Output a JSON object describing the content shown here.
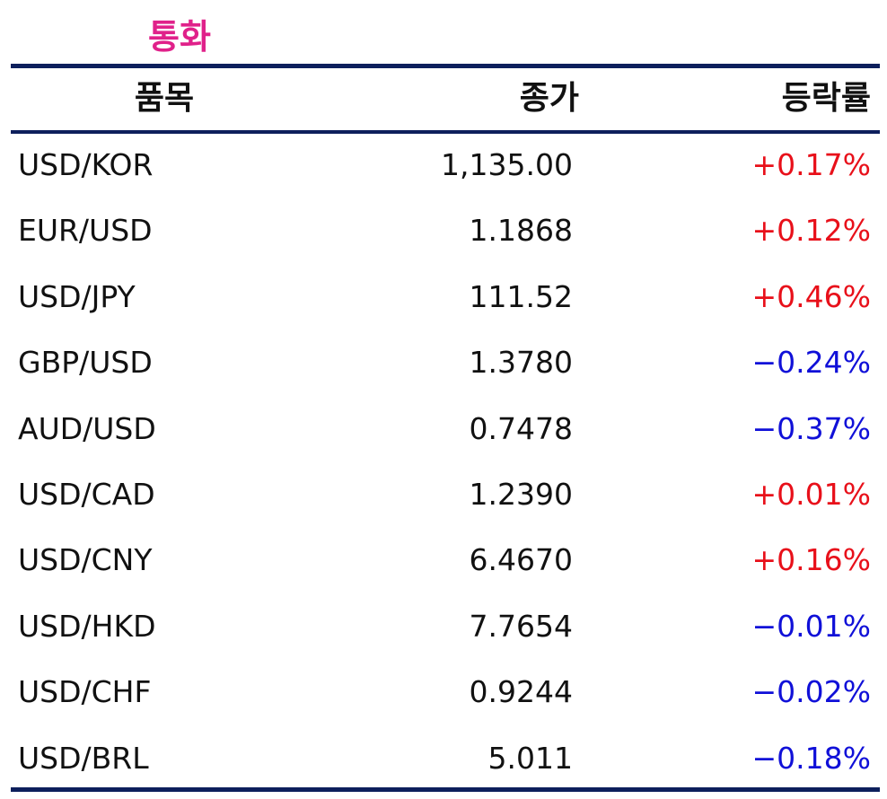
{
  "title": "통화",
  "table": {
    "header": [
      "품목",
      "종가",
      "등락률"
    ],
    "rows": [
      [
        "USD/KOR",
        "1,135.00",
        "+0.17%"
      ],
      [
        "EUR/USD",
        "1.1868",
        "+0.12%"
      ],
      [
        "USD/JPY",
        "111.52",
        "+0.46%"
      ],
      [
        "GBP/USD",
        "1.3780",
        "−0.24%"
      ],
      [
        "AUD/USD",
        "0.7478",
        "−0.37%"
      ],
      [
        "USD/CAD",
        "1.2390",
        "+0.01%"
      ],
      [
        "USD/CNY",
        "6.4670",
        "+0.16%"
      ],
      [
        "USD/HKD",
        "7.7654",
        "−0.01%"
      ],
      [
        "USD/CHF",
        "0.9244",
        "−0.02%"
      ],
      [
        "USD/BRL",
        "5.011",
        "−0.18%"
      ]
    ]
  }
}
